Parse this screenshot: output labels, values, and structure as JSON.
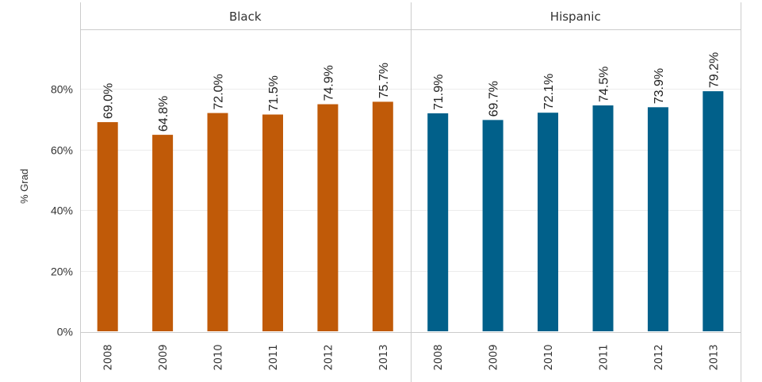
{
  "chart_data": {
    "type": "bar",
    "ylabel": "% Grad",
    "ylim": [
      0,
      100
    ],
    "yticks": [
      "0%",
      "20%",
      "40%",
      "60%",
      "80%"
    ],
    "ytick_values": [
      0,
      20,
      40,
      60,
      80
    ],
    "grid": true,
    "categories": [
      "2008",
      "2009",
      "2010",
      "2011",
      "2012",
      "2013"
    ],
    "panels": [
      {
        "name": "Black",
        "color": "#c05a08",
        "values": [
          69.0,
          64.8,
          72.0,
          71.5,
          74.9,
          75.7
        ],
        "labels": [
          "69.0%",
          "64.8%",
          "72.0%",
          "71.5%",
          "74.9%",
          "75.7%"
        ]
      },
      {
        "name": "Hispanic",
        "color": "#01608a",
        "values": [
          71.9,
          69.7,
          72.1,
          74.5,
          73.9,
          79.2
        ],
        "labels": [
          "71.9%",
          "69.7%",
          "72.1%",
          "74.5%",
          "73.9%",
          "79.2%"
        ]
      }
    ]
  }
}
